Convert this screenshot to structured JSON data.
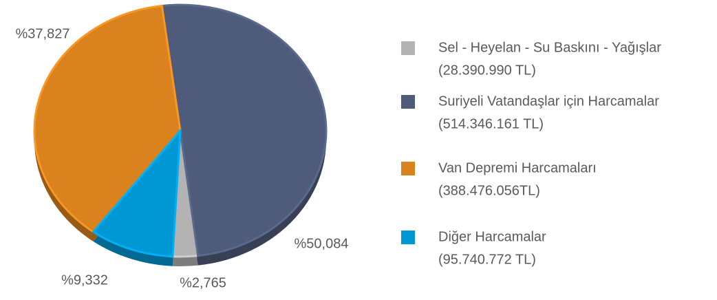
{
  "chart_data": {
    "type": "pie",
    "categories": [
      "Sel - Heyelan - Su Baskını - Yağışlar",
      "Suriyeli Vatandaşlar için Harcamalar",
      "Van Depremi Harcamaları",
      "Diğer Harcamalar"
    ],
    "amounts": [
      "(28.390.990 TL)",
      "(514.346.161 TL)",
      "(388.476.056TL)",
      "(95.740.772 TL)"
    ],
    "values": [
      2.765,
      50.084,
      37.827,
      9.332
    ],
    "value_labels": [
      "%2,765",
      "%50,084",
      "%37,827",
      "%9,332"
    ],
    "colors": [
      "#b3b3b3",
      "#4f5b7a",
      "#d9821e",
      "#0098d4"
    ]
  }
}
